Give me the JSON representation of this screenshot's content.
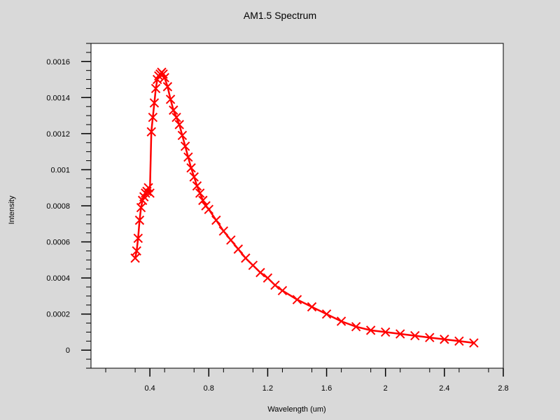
{
  "chart_data": {
    "type": "line",
    "title": "AM1.5 Spectrum",
    "xlabel": "Wavelength (um)",
    "ylabel": "Intensity",
    "xlim": [
      0.0,
      2.8
    ],
    "ylim": [
      -0.0001,
      0.0017
    ],
    "x_ticks": [
      0.4,
      0.8,
      1.2,
      1.6,
      2.0,
      2.4,
      2.8
    ],
    "x_tick_labels": [
      "0.4",
      "0.8",
      "1.2",
      "1.6",
      "2",
      "2.4",
      "2.8"
    ],
    "y_ticks": [
      0,
      0.0002,
      0.0004,
      0.0006,
      0.0008,
      0.001,
      0.0012,
      0.0014,
      0.0016
    ],
    "y_tick_labels": [
      "0",
      "0.0002",
      "0.0004",
      "0.0006",
      "0.0008",
      "0.001",
      "0.0012",
      "0.0014",
      "0.0016"
    ],
    "grid": false,
    "line_color": "#ff0000",
    "marker": "x",
    "series": [
      {
        "x": [
          0.3,
          0.31,
          0.32,
          0.33,
          0.34,
          0.35,
          0.36,
          0.37,
          0.38,
          0.39,
          0.4,
          0.41,
          0.42,
          0.43,
          0.44,
          0.45,
          0.46,
          0.47,
          0.48,
          0.49,
          0.5,
          0.52,
          0.54,
          0.56,
          0.58,
          0.6,
          0.62,
          0.64,
          0.66,
          0.68,
          0.7,
          0.72,
          0.74,
          0.76,
          0.78,
          0.8,
          0.85,
          0.9,
          0.95,
          1.0,
          1.05,
          1.1,
          1.15,
          1.2,
          1.25,
          1.3,
          1.4,
          1.5,
          1.6,
          1.7,
          1.8,
          1.9,
          2.0,
          2.1,
          2.2,
          2.3,
          2.4,
          2.5,
          2.6
        ],
        "y": [
          0.00051,
          0.00055,
          0.00062,
          0.00072,
          0.00079,
          0.00083,
          0.00085,
          0.00087,
          0.00088,
          0.0009,
          0.00087,
          0.00121,
          0.00129,
          0.00137,
          0.00145,
          0.0015,
          0.00152,
          0.00153,
          0.00154,
          0.00153,
          0.00151,
          0.00146,
          0.00139,
          0.00133,
          0.00129,
          0.00125,
          0.00119,
          0.00113,
          0.00107,
          0.00101,
          0.00096,
          0.00091,
          0.00087,
          0.00083,
          0.0008,
          0.00078,
          0.00072,
          0.00066,
          0.00061,
          0.00056,
          0.00051,
          0.00047,
          0.00043,
          0.0004,
          0.00036,
          0.00033,
          0.00028,
          0.00024,
          0.0002,
          0.00016,
          0.00013,
          0.00011,
          0.0001,
          9e-05,
          8e-05,
          7e-05,
          6e-05,
          5e-05,
          4e-05
        ]
      }
    ]
  }
}
